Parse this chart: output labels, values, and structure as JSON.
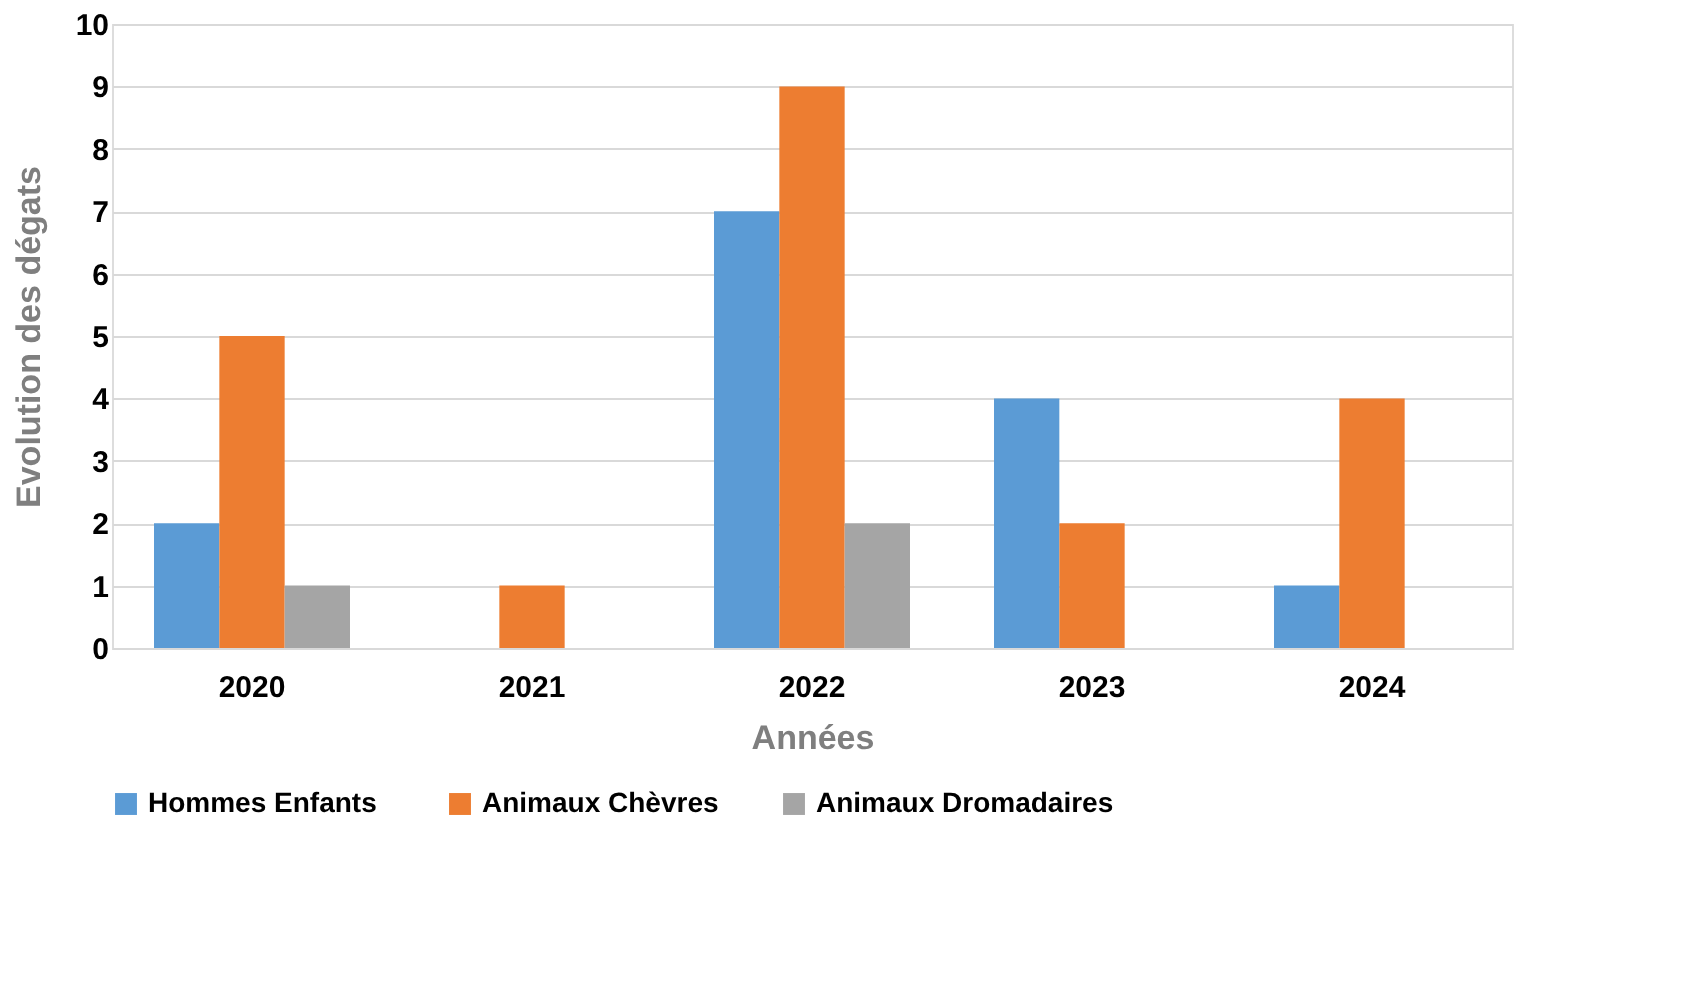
{
  "chart_data": {
    "type": "bar",
    "xlabel": "Années",
    "ylabel": "Evolution des dégats",
    "categories": [
      "2020",
      "2021",
      "2022",
      "2023",
      "2024"
    ],
    "series": [
      {
        "name": "Hommes  Enfants",
        "color": "#5b9bd5",
        "values": [
          2,
          0,
          7,
          4,
          1
        ]
      },
      {
        "name": "Animaux Chèvres",
        "color": "#ed7d31",
        "values": [
          5,
          1,
          9,
          2,
          4
        ]
      },
      {
        "name": "Animaux Dromadaires",
        "color": "#a5a5a5",
        "values": [
          1,
          0,
          2,
          0,
          0
        ]
      }
    ],
    "ylim": [
      0,
      10
    ],
    "yticks": [
      0,
      1,
      2,
      3,
      4,
      5,
      6,
      7,
      8,
      9,
      10
    ],
    "grid": "y",
    "legend": "bottom"
  }
}
